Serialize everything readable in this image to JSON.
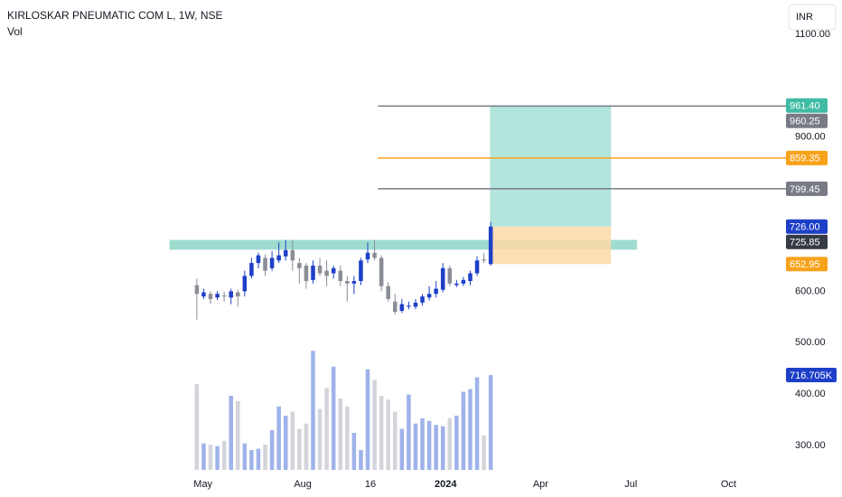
{
  "chart_data": {
    "type": "candlestick",
    "title": "KIRLOSKAR PNEUMATIC COM L, 1W, NSE",
    "volume_title": "Vol",
    "currency": "INR",
    "up_color": "#1e3fc8",
    "down_color": "#8a8d96",
    "volume_up_color": "#9fb3ea",
    "volume_down_color": "#d3d5da",
    "x": [
      0,
      1,
      2,
      3,
      4,
      5,
      6,
      7,
      8,
      9,
      10,
      11,
      12,
      13,
      14,
      15,
      16,
      17,
      18,
      19,
      20,
      21,
      22,
      23,
      24,
      25,
      26,
      27,
      28,
      29,
      30,
      31,
      32,
      33,
      34,
      35,
      36,
      37,
      38,
      39,
      40,
      41,
      42,
      43
    ],
    "open": [
      612,
      590,
      595,
      588,
      592,
      588,
      598,
      600,
      630,
      655,
      665,
      645,
      660,
      668,
      680,
      655,
      650,
      622,
      650,
      640,
      635,
      640,
      620,
      615,
      620,
      662,
      675,
      665,
      610,
      580,
      562,
      570,
      570,
      578,
      588,
      595,
      603,
      645,
      612,
      615,
      620,
      635,
      662,
      652.95
    ],
    "high": [
      625,
      605,
      600,
      600,
      600,
      605,
      603,
      640,
      665,
      675,
      672,
      678,
      695,
      700,
      700,
      665,
      655,
      660,
      665,
      660,
      650,
      650,
      630,
      630,
      665,
      695,
      700,
      670,
      618,
      595,
      585,
      580,
      585,
      595,
      610,
      620,
      655,
      650,
      622,
      628,
      640,
      668,
      675,
      735
    ],
    "low": [
      545,
      585,
      575,
      583,
      580,
      575,
      570,
      590,
      625,
      645,
      630,
      640,
      655,
      660,
      640,
      615,
      605,
      615,
      630,
      610,
      625,
      610,
      580,
      595,
      612,
      655,
      660,
      600,
      580,
      555,
      558,
      565,
      565,
      572,
      582,
      588,
      598,
      610,
      608,
      610,
      612,
      630,
      655,
      650
    ],
    "close": [
      595,
      598,
      585,
      595,
      590,
      600,
      590,
      630,
      655,
      670,
      640,
      665,
      670,
      680,
      660,
      645,
      620,
      650,
      635,
      630,
      645,
      620,
      615,
      620,
      660,
      675,
      665,
      610,
      585,
      560,
      575,
      572,
      578,
      590,
      595,
      605,
      645,
      615,
      615,
      622,
      635,
      660,
      660,
      725.85
    ],
    "volume": [
      650000,
      200000,
      190000,
      180000,
      220000,
      560000,
      520000,
      200000,
      150000,
      160000,
      190000,
      300000,
      480000,
      410000,
      440000,
      310000,
      350000,
      900000,
      460000,
      620000,
      780000,
      540000,
      480000,
      280000,
      150000,
      760000,
      680000,
      560000,
      530000,
      440000,
      310000,
      570000,
      350000,
      390000,
      370000,
      340000,
      330000,
      390000,
      410000,
      590000,
      610000,
      700000,
      260000,
      716705
    ],
    "xlim": [
      -28.8,
      86.2
    ],
    "xticks": [
      {
        "value": 0.9,
        "label": "May"
      },
      {
        "value": 15.5,
        "label": "Aug"
      },
      {
        "value": 25.4,
        "label": "16"
      },
      {
        "value": 36.4,
        "label": "2024"
      },
      {
        "value": 50.3,
        "label": "Apr"
      },
      {
        "value": 63.5,
        "label": "Jul"
      },
      {
        "value": 77.8,
        "label": "Oct"
      }
    ],
    "ylim": [
      266.67,
      1166.67
    ],
    "yticks": [
      {
        "value": 300,
        "label": "300.00"
      },
      {
        "value": 400,
        "label": "400.00"
      },
      {
        "value": 500,
        "label": "500.00"
      },
      {
        "value": 600,
        "label": "600.00"
      },
      {
        "value": 900,
        "label": "900.00"
      },
      {
        "value": 1100,
        "label": "1100.00"
      }
    ],
    "volume_lim": [
      0,
      1000000
    ],
    "zone": {
      "x": [
        -4,
        64.4
      ],
      "top": 700,
      "bottom": 681,
      "color": "#9fdcd0"
    },
    "position": {
      "x": [
        42.9,
        60.6
      ],
      "entry": 725.85,
      "target": 961.4,
      "stop": 652.95,
      "profit_color": "#b2e5dc",
      "loss_color": "#fdd9a8"
    },
    "price_lines": [
      {
        "value": 960.25,
        "color": "#787b86",
        "x_from": 26.5
      },
      {
        "value": 859.35,
        "color": "#f7a21b",
        "x_from": 26.5
      },
      {
        "value": 799.45,
        "color": "#787b86",
        "x_from": 26.5
      }
    ],
    "price_tags": [
      {
        "value": 961.4,
        "label": "961.40",
        "color": "#3fbca3"
      },
      {
        "value": 726,
        "label": "726.00",
        "color": "#1e3fc8"
      },
      {
        "value": 725.85,
        "color": "#363a45"
      },
      {
        "value": 652.95,
        "color": "#f7a21b"
      }
    ],
    "volume_tag": {
      "value": 716705,
      "label": "716.705K",
      "color": "#1e3fc8"
    }
  }
}
